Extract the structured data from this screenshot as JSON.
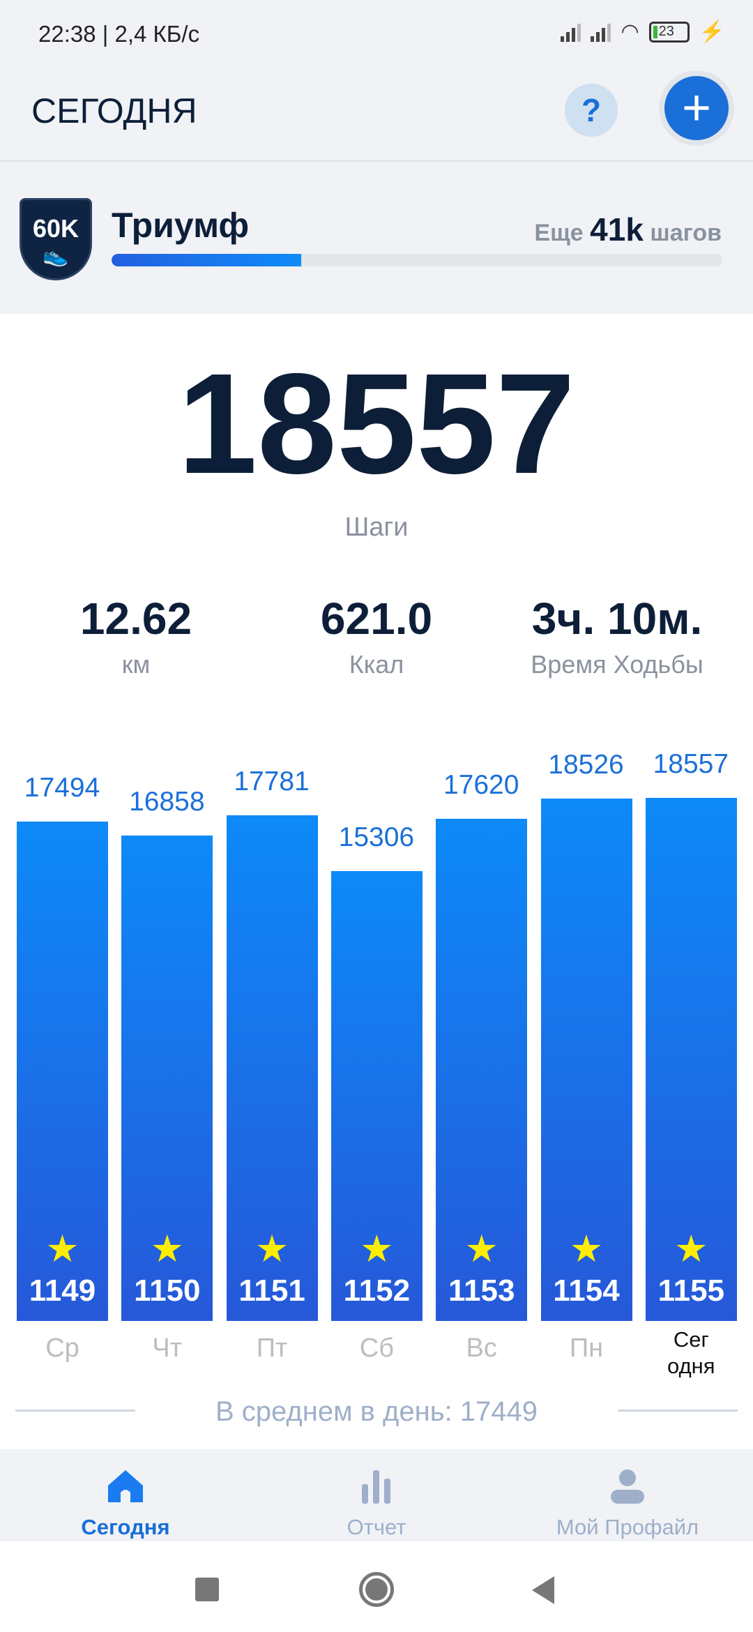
{
  "status_bar": {
    "time": "22:38 | 2,4 КБ/с",
    "battery": "23"
  },
  "header": {
    "title": "СЕГОДНЯ",
    "help_label": "?",
    "add_label": "+"
  },
  "achievement": {
    "badge": "60K",
    "title": "Триумф",
    "remaining_prefix": "Еще",
    "remaining_value": "41k",
    "remaining_suffix": "шагов",
    "progress_percent": 31
  },
  "today": {
    "steps": "18557",
    "steps_label": "Шаги"
  },
  "stats": [
    {
      "value": "12.62",
      "label": "км"
    },
    {
      "value": "621.0",
      "label": "Ккал"
    },
    {
      "value": "3ч. 10м.",
      "label": "Время Ходьбы"
    }
  ],
  "chart_data": {
    "type": "bar",
    "categories": [
      "Ср",
      "Чт",
      "Пт",
      "Сб",
      "Вс",
      "Пн",
      "Сегодня"
    ],
    "category_labels": [
      "Ср",
      "Чт",
      "Пт",
      "Сб",
      "Вс",
      "Пн",
      "Сег\nодня"
    ],
    "values": [
      17494,
      16858,
      17781,
      15306,
      17620,
      18526,
      18557
    ],
    "day_numbers": [
      "1149",
      "1150",
      "1151",
      "1152",
      "1153",
      "1154",
      "1155"
    ],
    "value_labels": [
      "17494",
      "16858",
      "17781",
      "15306",
      "17620",
      "18526",
      "18557"
    ],
    "bar_color": "#1a6fd8",
    "star_color": "#ffee00"
  },
  "average": {
    "text": "В среднем в день: 17449"
  },
  "bottom_nav": [
    {
      "label": "Сегодня",
      "icon": "home-icon",
      "active": true
    },
    {
      "label": "Отчет",
      "icon": "bar-chart-icon"
    },
    {
      "label": "Мой Профайл",
      "icon": "user-icon"
    }
  ],
  "colors": {
    "accent": "#1a6fd8",
    "dark": "#0d1f38"
  }
}
